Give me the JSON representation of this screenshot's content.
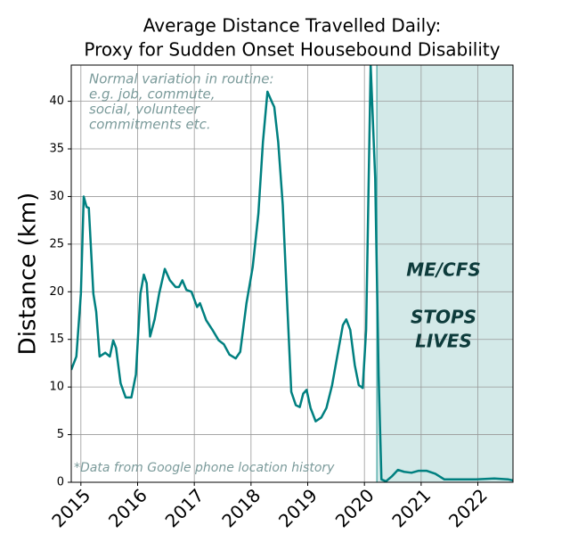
{
  "chart_data": {
    "type": "line",
    "title": [
      "Average Distance Travelled Daily:",
      "Proxy for Sudden Onset Housebound Disability"
    ],
    "y_label": "Distance (km)",
    "x": [
      2014.83,
      2014.92,
      2015.0,
      2015.05,
      2015.1,
      2015.14,
      2015.22,
      2015.27,
      2015.33,
      2015.43,
      2015.51,
      2015.57,
      2015.62,
      2015.7,
      2015.79,
      2015.89,
      2015.97,
      2016.05,
      2016.11,
      2016.16,
      2016.22,
      2016.3,
      2016.38,
      2016.48,
      2016.57,
      2016.67,
      2016.73,
      2016.79,
      2016.86,
      2016.95,
      2017.05,
      2017.1,
      2017.21,
      2017.32,
      2017.43,
      2017.52,
      2017.62,
      2017.73,
      2017.81,
      2017.92,
      2018.03,
      2018.13,
      2018.21,
      2018.29,
      2018.37,
      2018.41,
      2018.48,
      2018.56,
      2018.63,
      2018.71,
      2018.79,
      2018.86,
      2018.92,
      2018.98,
      2019.05,
      2019.14,
      2019.24,
      2019.33,
      2019.43,
      2019.52,
      2019.62,
      2019.68,
      2019.75,
      2019.83,
      2019.9,
      2019.97,
      2020.03,
      2020.11,
      2020.19,
      2020.25,
      2020.3,
      2020.38,
      2020.48,
      2020.59,
      2020.7,
      2020.83,
      2020.95,
      2021.1,
      2021.25,
      2021.41,
      2021.65,
      2021.97,
      2022.29,
      2022.54,
      2022.62
    ],
    "series": [
      {
        "color": "#008080",
        "values": [
          11.8,
          13.2,
          19.8,
          30.0,
          28.9,
          28.8,
          19.8,
          17.9,
          13.2,
          13.6,
          13.2,
          14.9,
          14.1,
          10.4,
          8.9,
          8.9,
          11.3,
          19.8,
          21.8,
          20.9,
          15.3,
          17.1,
          19.8,
          22.4,
          21.2,
          20.5,
          20.5,
          21.2,
          20.2,
          20.0,
          18.4,
          18.8,
          17.0,
          16.0,
          14.9,
          14.5,
          13.4,
          13.0,
          13.7,
          18.8,
          22.6,
          28.2,
          35.7,
          41.0,
          39.9,
          39.4,
          35.7,
          29.1,
          19.8,
          9.5,
          8.1,
          7.9,
          9.3,
          9.7,
          7.8,
          6.4,
          6.8,
          7.8,
          10.2,
          13.2,
          16.5,
          17.1,
          16.0,
          12.3,
          10.2,
          9.9,
          16.0,
          43.8,
          31.9,
          11.3,
          0.3,
          0.1,
          0.6,
          1.3,
          1.1,
          1.0,
          1.2,
          1.2,
          0.9,
          0.3,
          0.3,
          0.3,
          0.4,
          0.3,
          0.2
        ]
      }
    ],
    "xlim": [
      2014.83,
      2022.62
    ],
    "ylim": [
      0,
      43.8
    ],
    "xticks": [
      2015,
      2016,
      2017,
      2018,
      2019,
      2020,
      2021,
      2022
    ],
    "yticks": [
      0,
      5,
      10,
      15,
      20,
      25,
      30,
      35,
      40
    ],
    "grid": true,
    "highlight_span": [
      2020.22,
      2022.62
    ],
    "highlight_color": "#d3e9e8",
    "note": [
      "Normal variation in routine:",
      "e.g. job, commute,",
      "social, volunteer",
      "commitments etc."
    ],
    "highlight_text": [
      [
        "ME/CFS"
      ],
      [
        "STOPS",
        "LIVES"
      ]
    ],
    "footnote": "*Data from Google phone location history"
  }
}
